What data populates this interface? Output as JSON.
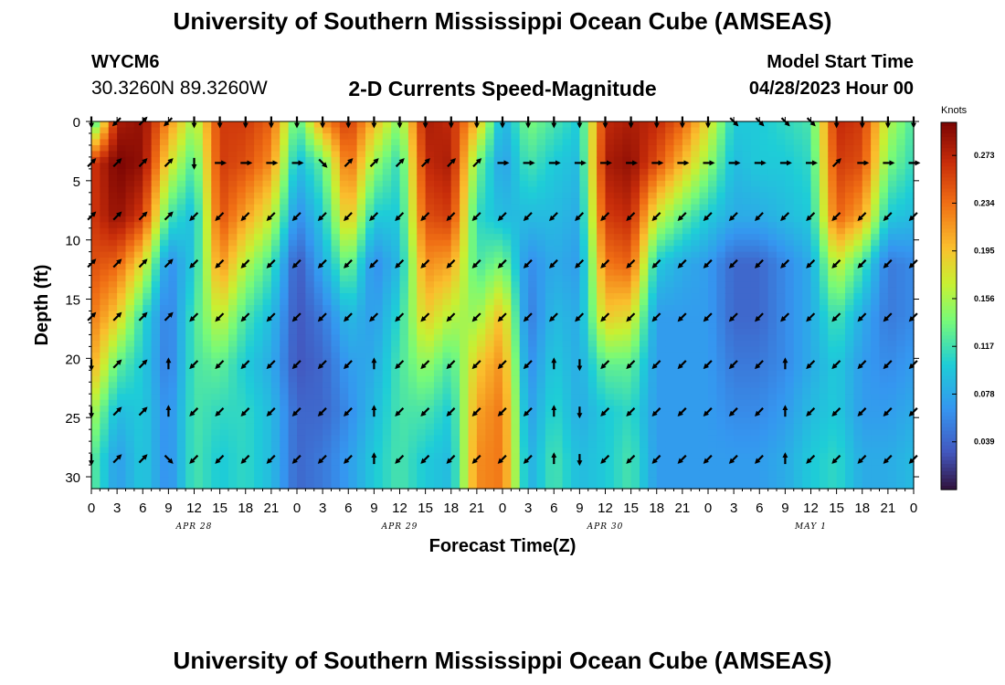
{
  "header": {
    "title": "University of Southern Mississippi Ocean Cube (AMSEAS)",
    "station_id": "WYCM6",
    "station_coords": "30.3260N  89.3260W",
    "subtitle": "2-D Currents Speed-Magnitude",
    "model_start_label": "Model Start Time",
    "model_start_value": "04/28/2023 Hour 00"
  },
  "footer": {
    "title": "University of Southern Mississippi Ocean Cube (AMSEAS)"
  },
  "chart_data": {
    "type": "heatmap",
    "title": "2-D Currents Speed-Magnitude",
    "xlabel": "Forecast Time(Z)",
    "ylabel": "Depth (ft)",
    "x_tick_labels": [
      "0",
      "3",
      "6",
      "9",
      "12",
      "15",
      "18",
      "21",
      "0",
      "3",
      "6",
      "9",
      "12",
      "15",
      "18",
      "21",
      "0",
      "3",
      "6",
      "9",
      "12",
      "15",
      "18",
      "21",
      "0",
      "3",
      "6",
      "9",
      "12",
      "15",
      "18",
      "21",
      "0"
    ],
    "date_labels": [
      {
        "label": "APR 28",
        "hour": 12
      },
      {
        "label": "APR 29",
        "hour": 36
      },
      {
        "label": "APR 30",
        "hour": 60
      },
      {
        "label": "MAY 1",
        "hour": 84
      }
    ],
    "xlim": [
      0,
      96
    ],
    "ylim": [
      0,
      31
    ],
    "y_ticks": [
      0,
      5,
      10,
      15,
      20,
      25,
      30
    ],
    "colorbar": {
      "unit": "Knots",
      "ticks": [
        "0.273",
        "0.234",
        "0.195",
        "0.156",
        "0.117",
        "0.078",
        "0.039"
      ],
      "range": [
        0,
        0.3
      ]
    },
    "hours": [
      0,
      3,
      6,
      9,
      12,
      15,
      18,
      21,
      24,
      27,
      30,
      33,
      36,
      39,
      42,
      45,
      48,
      51,
      54,
      57,
      60,
      63,
      66,
      69,
      72,
      75,
      78,
      81,
      84,
      87,
      90,
      93,
      96
    ],
    "depths": [
      0,
      3.5,
      8,
      12,
      16.5,
      20.5,
      24.5,
      28.5
    ],
    "speed_profiles": [
      [
        0.1,
        0.26,
        0.26,
        0.25,
        0.23,
        0.21,
        0.16,
        0.13
      ],
      [
        0.28,
        0.3,
        0.29,
        0.24,
        0.19,
        0.13,
        0.09,
        0.07
      ],
      [
        0.29,
        0.29,
        0.26,
        0.18,
        0.11,
        0.1,
        0.1,
        0.1
      ],
      [
        0.22,
        0.18,
        0.12,
        0.06,
        0.05,
        0.05,
        0.06,
        0.06
      ],
      [
        0.15,
        0.12,
        0.09,
        0.1,
        0.12,
        0.12,
        0.12,
        0.12
      ],
      [
        0.26,
        0.26,
        0.25,
        0.22,
        0.17,
        0.13,
        0.11,
        0.1
      ],
      [
        0.26,
        0.25,
        0.21,
        0.16,
        0.12,
        0.1,
        0.11,
        0.11
      ],
      [
        0.24,
        0.22,
        0.17,
        0.12,
        0.09,
        0.08,
        0.09,
        0.09
      ],
      [
        0.12,
        0.09,
        0.06,
        0.03,
        0.03,
        0.03,
        0.04,
        0.04
      ],
      [
        0.22,
        0.13,
        0.1,
        0.08,
        0.05,
        0.04,
        0.04,
        0.05
      ],
      [
        0.26,
        0.24,
        0.2,
        0.14,
        0.09,
        0.07,
        0.06,
        0.07
      ],
      [
        0.2,
        0.15,
        0.1,
        0.06,
        0.07,
        0.08,
        0.09,
        0.1
      ],
      [
        0.14,
        0.11,
        0.1,
        0.09,
        0.11,
        0.12,
        0.12,
        0.12
      ],
      [
        0.28,
        0.27,
        0.25,
        0.22,
        0.19,
        0.15,
        0.12,
        0.1
      ],
      [
        0.27,
        0.28,
        0.26,
        0.21,
        0.16,
        0.12,
        0.1,
        0.09
      ],
      [
        0.2,
        0.14,
        0.11,
        0.12,
        0.15,
        0.19,
        0.21,
        0.22
      ],
      [
        0.08,
        0.07,
        0.09,
        0.14,
        0.2,
        0.22,
        0.23,
        0.23
      ],
      [
        0.14,
        0.12,
        0.09,
        0.06,
        0.05,
        0.06,
        0.07,
        0.08
      ],
      [
        0.12,
        0.1,
        0.09,
        0.08,
        0.09,
        0.1,
        0.11,
        0.12
      ],
      [
        0.1,
        0.09,
        0.08,
        0.07,
        0.08,
        0.08,
        0.08,
        0.09
      ],
      [
        0.27,
        0.28,
        0.26,
        0.23,
        0.19,
        0.13,
        0.1,
        0.1
      ],
      [
        0.28,
        0.29,
        0.27,
        0.24,
        0.18,
        0.13,
        0.11,
        0.12
      ],
      [
        0.27,
        0.25,
        0.17,
        0.1,
        0.07,
        0.07,
        0.07,
        0.07
      ],
      [
        0.24,
        0.2,
        0.13,
        0.08,
        0.07,
        0.07,
        0.07,
        0.07
      ],
      [
        0.18,
        0.15,
        0.1,
        0.07,
        0.07,
        0.07,
        0.07,
        0.07
      ],
      [
        0.1,
        0.09,
        0.08,
        0.04,
        0.04,
        0.05,
        0.06,
        0.07
      ],
      [
        0.1,
        0.1,
        0.08,
        0.04,
        0.04,
        0.05,
        0.06,
        0.07
      ],
      [
        0.11,
        0.1,
        0.09,
        0.06,
        0.06,
        0.06,
        0.07,
        0.08
      ],
      [
        0.12,
        0.11,
        0.1,
        0.08,
        0.08,
        0.08,
        0.09,
        0.1
      ],
      [
        0.27,
        0.26,
        0.24,
        0.17,
        0.12,
        0.1,
        0.1,
        0.11
      ],
      [
        0.26,
        0.25,
        0.21,
        0.12,
        0.08,
        0.07,
        0.07,
        0.08
      ],
      [
        0.16,
        0.14,
        0.1,
        0.05,
        0.05,
        0.06,
        0.07,
        0.08
      ],
      [
        0.12,
        0.11,
        0.09,
        0.06,
        0.06,
        0.07,
        0.08,
        0.09
      ]
    ],
    "arrow_directions_deg": [
      [
        180,
        225,
        45,
        225,
        180,
        180,
        180,
        180,
        180,
        180,
        180,
        180,
        180,
        180,
        180,
        180,
        180,
        180,
        180,
        180,
        180,
        180,
        180,
        180,
        180,
        135,
        135,
        135,
        135,
        180,
        180,
        180,
        180
      ],
      [
        45,
        45,
        45,
        45,
        180,
        90,
        90,
        90,
        90,
        135,
        45,
        45,
        45,
        45,
        45,
        45,
        90,
        90,
        90,
        90,
        90,
        90,
        90,
        90,
        90,
        90,
        90,
        90,
        90,
        45,
        90,
        90,
        90
      ],
      [
        45,
        45,
        45,
        45,
        225,
        225,
        225,
        225,
        225,
        225,
        225,
        225,
        225,
        225,
        225,
        225,
        225,
        225,
        225,
        225,
        225,
        225,
        225,
        225,
        225,
        225,
        225,
        225,
        225,
        225,
        225,
        225,
        225
      ],
      [
        45,
        45,
        45,
        45,
        225,
        225,
        225,
        225,
        225,
        225,
        225,
        225,
        225,
        225,
        225,
        225,
        225,
        225,
        225,
        225,
        225,
        225,
        225,
        225,
        225,
        225,
        225,
        225,
        225,
        225,
        225,
        225,
        225
      ],
      [
        45,
        45,
        45,
        45,
        225,
        225,
        225,
        225,
        225,
        225,
        225,
        225,
        225,
        225,
        225,
        225,
        225,
        225,
        225,
        225,
        225,
        225,
        225,
        225,
        225,
        225,
        225,
        225,
        225,
        225,
        225,
        225,
        225
      ],
      [
        180,
        45,
        45,
        0,
        225,
        225,
        225,
        225,
        225,
        225,
        225,
        0,
        225,
        225,
        225,
        225,
        225,
        225,
        0,
        180,
        225,
        225,
        225,
        225,
        225,
        225,
        225,
        0,
        225,
        225,
        225,
        225,
        225
      ],
      [
        180,
        45,
        45,
        0,
        225,
        225,
        225,
        225,
        225,
        225,
        225,
        0,
        225,
        225,
        225,
        225,
        225,
        225,
        0,
        180,
        225,
        225,
        225,
        225,
        225,
        225,
        225,
        0,
        225,
        225,
        225,
        225,
        225
      ],
      [
        180,
        45,
        45,
        135,
        225,
        225,
        225,
        225,
        225,
        225,
        225,
        0,
        225,
        225,
        225,
        225,
        225,
        225,
        0,
        180,
        225,
        225,
        225,
        225,
        225,
        225,
        225,
        0,
        225,
        225,
        225,
        225,
        225
      ]
    ]
  }
}
